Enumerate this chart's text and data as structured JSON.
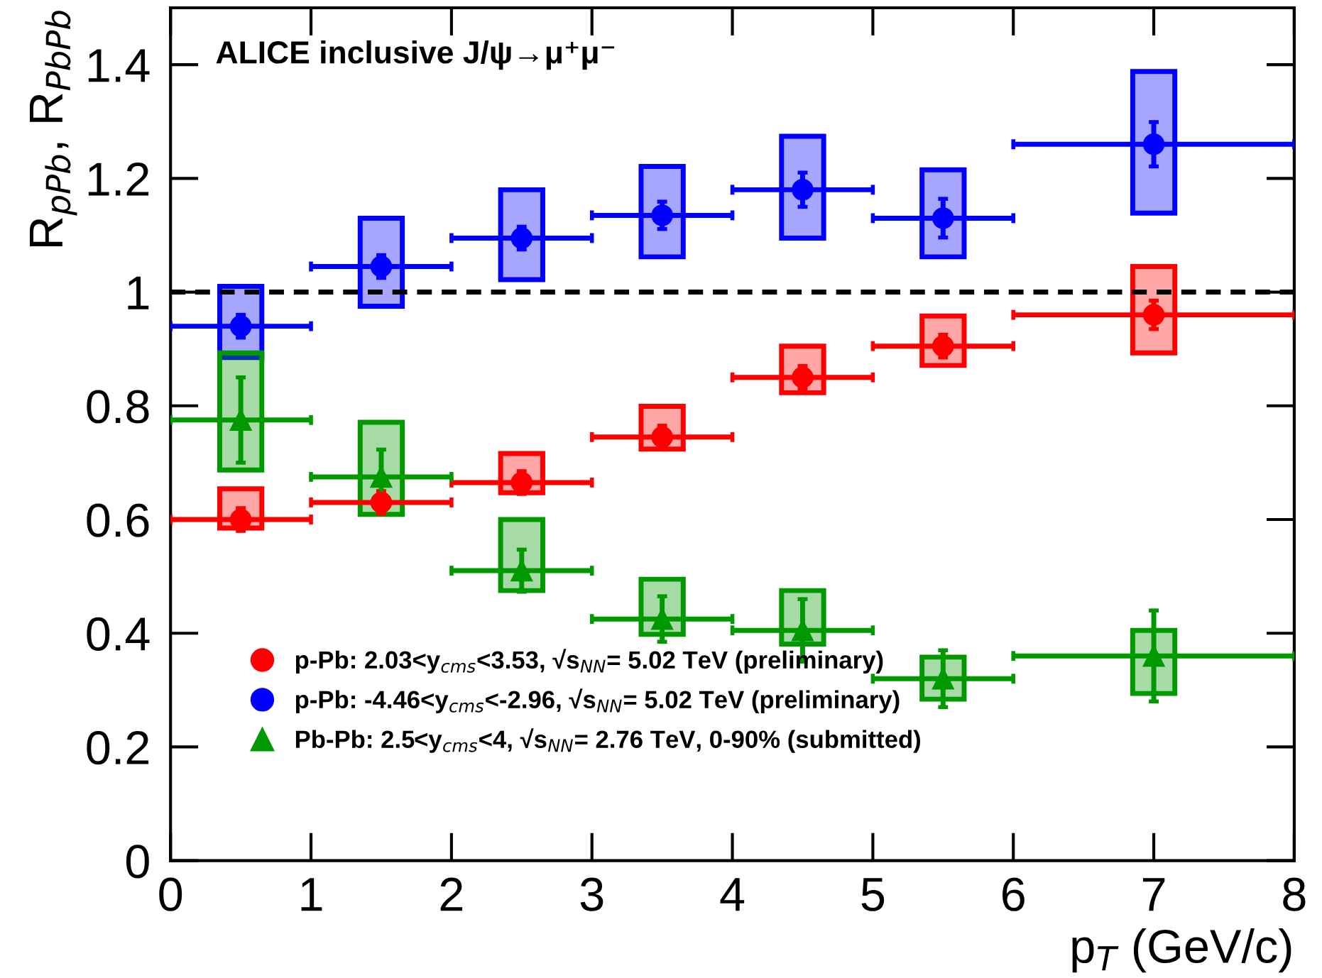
{
  "chart_data": {
    "type": "scatter",
    "xlabel": "p$_{T}$ (GeV/c)",
    "ylabel": "R$_{pPb}$, R$_{PbPb}$",
    "annotations": [
      "ALICE inclusive J/ψ→μ⁺μ⁻"
    ],
    "xlim": [
      0,
      8
    ],
    "xticks": [
      0,
      1,
      2,
      3,
      4,
      5,
      6,
      7,
      8
    ],
    "ylim": [
      0,
      1.5
    ],
    "yticks": [
      0,
      0.2,
      0.4,
      0.6,
      0.8,
      1,
      1.2,
      1.4
    ],
    "grid": false,
    "legend": "bottom left",
    "ref_lines": [
      {
        "axis": "y",
        "value": 1,
        "color": "#000000",
        "line_style": "dashed"
      }
    ],
    "series": [
      {
        "type": "bar",
        "color": "#ff0000",
        "x": [
          0.5,
          1.5,
          2.5,
          3.5,
          4.5,
          5.5,
          7
        ],
        "base": [
          0.585,
          null,
          0.647,
          0.724,
          0.823,
          0.871,
          0.893
        ],
        "values": [
          0.069,
          null,
          0.069,
          0.075,
          0.082,
          0.087,
          0.152
        ]
      },
      {
        "type": "bar",
        "color": "#0000ff",
        "x": [
          0.5,
          1.5,
          2.5,
          3.5,
          4.5,
          5.5,
          7
        ],
        "base": [
          0.885,
          0.975,
          1.022,
          1.062,
          1.095,
          1.062,
          1.139
        ],
        "values": [
          0.125,
          0.155,
          0.158,
          0.159,
          0.179,
          0.153,
          0.249
        ]
      },
      {
        "type": "bar",
        "color": "#009900",
        "x": [
          0.5,
          1.5,
          2.5,
          3.5,
          4.5,
          5.5,
          7
        ],
        "base": [
          0.687,
          0.609,
          0.475,
          0.398,
          0.381,
          0.284,
          0.294
        ],
        "values": [
          0.206,
          0.162,
          0.125,
          0.097,
          0.094,
          0.074,
          0.111
        ]
      },
      {
        "name": "p-Pb: 2.03<y$_{cms}$<3.53, √s$_{NN}$= 5.02 TeV (preliminary)",
        "color": "#ff0000",
        "marker": "circle",
        "x": [
          0.5,
          1.5,
          2.5,
          3.5,
          4.5,
          5.5,
          7
        ],
        "values": [
          0.6,
          0.63,
          0.665,
          0.745,
          0.85,
          0.905,
          0.96
        ],
        "xerrors": [
          0.5,
          0.5,
          0.5,
          0.5,
          0.5,
          0.5,
          1
        ],
        "errors": [
          0.02,
          0.02,
          0.02,
          0.02,
          0.02,
          0.02,
          0.025
        ]
      },
      {
        "name": "p-Pb: -4.46<y$_{cms}$<-2.96, √s$_{NN}$= 5.02 TeV (preliminary)",
        "color": "#0000ff",
        "marker": "circle",
        "x": [
          0.5,
          1.5,
          2.5,
          3.5,
          4.5,
          5.5,
          7
        ],
        "values": [
          0.94,
          1.045,
          1.095,
          1.135,
          1.18,
          1.13,
          1.26
        ],
        "xerrors": [
          0.5,
          0.5,
          0.5,
          0.5,
          0.5,
          0.5,
          1
        ],
        "errors": [
          0.02,
          0.02,
          0.02,
          0.024,
          0.03,
          0.034,
          0.039
        ]
      },
      {
        "name": "Pb-Pb: 2.5<y$_{cms}$<4, √s$_{NN}$= 2.76 TeV, 0-90% (submitted)",
        "color": "#009900",
        "marker": "triangle",
        "x": [
          0.5,
          1.5,
          2.5,
          3.5,
          4.5,
          5.5,
          7
        ],
        "values": [
          0.775,
          0.675,
          0.51,
          0.425,
          0.405,
          0.32,
          0.36
        ],
        "xerrors": [
          0.5,
          0.5,
          0.5,
          0.5,
          0.5,
          0.5,
          1
        ],
        "errors": [
          0.075,
          0.048,
          0.037,
          0.04,
          0.055,
          0.05,
          0.08
        ]
      }
    ]
  }
}
